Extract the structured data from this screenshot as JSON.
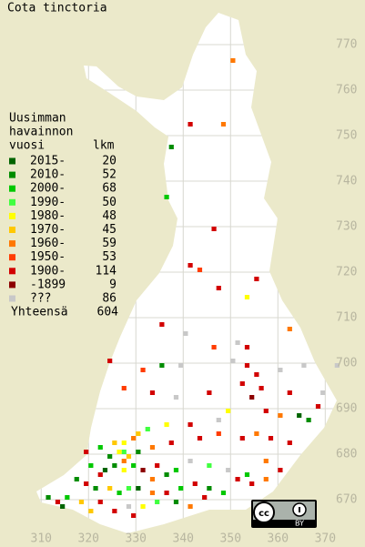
{
  "title": "Cota tinctoria",
  "legend": {
    "header": [
      "Uusimman",
      "havainnon",
      "vuosi"
    ],
    "count_header": "lkm",
    "items": [
      {
        "label": "2015-",
        "count": 20,
        "color": "#006400"
      },
      {
        "label": "2010-",
        "count": 52,
        "color": "#008c00"
      },
      {
        "label": "2000-",
        "count": 68,
        "color": "#00c800"
      },
      {
        "label": "1990-",
        "count": 50,
        "color": "#40ff40"
      },
      {
        "label": "1980-",
        "count": 48,
        "color": "#ffff00"
      },
      {
        "label": "1970-",
        "count": 45,
        "color": "#ffc800"
      },
      {
        "label": "1960-",
        "count": 59,
        "color": "#ff7800"
      },
      {
        "label": "1950-",
        "count": 53,
        "color": "#ff3c00"
      },
      {
        "label": "1900-",
        "count": 114,
        "color": "#d20000"
      },
      {
        "label": "-1899",
        "count": 9,
        "color": "#8c0000"
      },
      {
        "label": "???",
        "count": 86,
        "color": "#c8c8c8"
      }
    ],
    "total_label": "Yhteensä",
    "total": 604
  },
  "axes": {
    "xticks": [
      310,
      320,
      330,
      340,
      350,
      360,
      370
    ],
    "yticks": [
      670,
      680,
      690,
      700,
      710,
      720,
      730,
      740,
      750,
      760,
      770
    ],
    "xlim": [
      301.3,
      378.4
    ],
    "ylim": [
      659.6,
      779.8
    ]
  },
  "points": [
    [
      350,
      766,
      6
    ],
    [
      341,
      752,
      8
    ],
    [
      348,
      752,
      6
    ],
    [
      337,
      747,
      1
    ],
    [
      336,
      736,
      2
    ],
    [
      346,
      729,
      8
    ],
    [
      341,
      721,
      8
    ],
    [
      343,
      720,
      7
    ],
    [
      355,
      718,
      8
    ],
    [
      347,
      716,
      8
    ],
    [
      353,
      714,
      4
    ],
    [
      335,
      708,
      8
    ],
    [
      340,
      706,
      10
    ],
    [
      351,
      704,
      10
    ],
    [
      346,
      703,
      7
    ],
    [
      353,
      703,
      8
    ],
    [
      362,
      707,
      6
    ],
    [
      324,
      700,
      8
    ],
    [
      331,
      698,
      7
    ],
    [
      335,
      699,
      1
    ],
    [
      339,
      699,
      10
    ],
    [
      350,
      700,
      10
    ],
    [
      353,
      699,
      8
    ],
    [
      355,
      697,
      8
    ],
    [
      360,
      698,
      10
    ],
    [
      365,
      699,
      10
    ],
    [
      372,
      699,
      10
    ],
    [
      327,
      694,
      7
    ],
    [
      333,
      693,
      8
    ],
    [
      338,
      692,
      10
    ],
    [
      345,
      693,
      8
    ],
    [
      352,
      695,
      8
    ],
    [
      354,
      692,
      9
    ],
    [
      356,
      694,
      8
    ],
    [
      362,
      693,
      8
    ],
    [
      369,
      693,
      10
    ],
    [
      368,
      690,
      8
    ],
    [
      349,
      689,
      4
    ],
    [
      357,
      689,
      8
    ],
    [
      360,
      688,
      6
    ],
    [
      364,
      688,
      0
    ],
    [
      366,
      687,
      1
    ],
    [
      347,
      687,
      10
    ],
    [
      341,
      686,
      8
    ],
    [
      336,
      686,
      4
    ],
    [
      332,
      685,
      3
    ],
    [
      330,
      684,
      5
    ],
    [
      329,
      683,
      6
    ],
    [
      327,
      682,
      4
    ],
    [
      325,
      682,
      5
    ],
    [
      322,
      681,
      2
    ],
    [
      319,
      680,
      8
    ],
    [
      327,
      680,
      3
    ],
    [
      330,
      680,
      1
    ],
    [
      333,
      681,
      6
    ],
    [
      337,
      682,
      8
    ],
    [
      343,
      683,
      8
    ],
    [
      347,
      684,
      7
    ],
    [
      352,
      683,
      8
    ],
    [
      355,
      684,
      6
    ],
    [
      358,
      683,
      8
    ],
    [
      362,
      682,
      8
    ],
    [
      320,
      677,
      2
    ],
    [
      323,
      676,
      0
    ],
    [
      325,
      677,
      1
    ],
    [
      327,
      676,
      4
    ],
    [
      329,
      677,
      2
    ],
    [
      331,
      676,
      9
    ],
    [
      334,
      677,
      8
    ],
    [
      338,
      676,
      2
    ],
    [
      341,
      678,
      10
    ],
    [
      345,
      677,
      3
    ],
    [
      349,
      676,
      10
    ],
    [
      353,
      675,
      2
    ],
    [
      357,
      678,
      6
    ],
    [
      360,
      676,
      8
    ],
    [
      317,
      674,
      1
    ],
    [
      319,
      673,
      8
    ],
    [
      321,
      672,
      1
    ],
    [
      324,
      672,
      5
    ],
    [
      326,
      671,
      2
    ],
    [
      328,
      672,
      3
    ],
    [
      330,
      672,
      0
    ],
    [
      333,
      671,
      6
    ],
    [
      336,
      671,
      8
    ],
    [
      339,
      672,
      2
    ],
    [
      342,
      673,
      8
    ],
    [
      345,
      672,
      1
    ],
    [
      348,
      671,
      2
    ],
    [
      351,
      674,
      8
    ],
    [
      354,
      673,
      8
    ],
    [
      357,
      674,
      6
    ],
    [
      311,
      670,
      1
    ],
    [
      313,
      669,
      8
    ],
    [
      315,
      670,
      2
    ],
    [
      318,
      669,
      5
    ],
    [
      322,
      669,
      8
    ],
    [
      325,
      667,
      8
    ],
    [
      328,
      668,
      10
    ],
    [
      331,
      668,
      4
    ],
    [
      334,
      669,
      3
    ],
    [
      338,
      669,
      1
    ],
    [
      341,
      668,
      6
    ],
    [
      344,
      670,
      8
    ],
    [
      314,
      668,
      0
    ],
    [
      320,
      667,
      5
    ],
    [
      329,
      666,
      8
    ],
    [
      327,
      678,
      6
    ],
    [
      328,
      679,
      5
    ],
    [
      326,
      680,
      4
    ],
    [
      324,
      679,
      1
    ],
    [
      322,
      675,
      8
    ],
    [
      333,
      674,
      6
    ],
    [
      336,
      675,
      1
    ]
  ],
  "license": "BY"
}
